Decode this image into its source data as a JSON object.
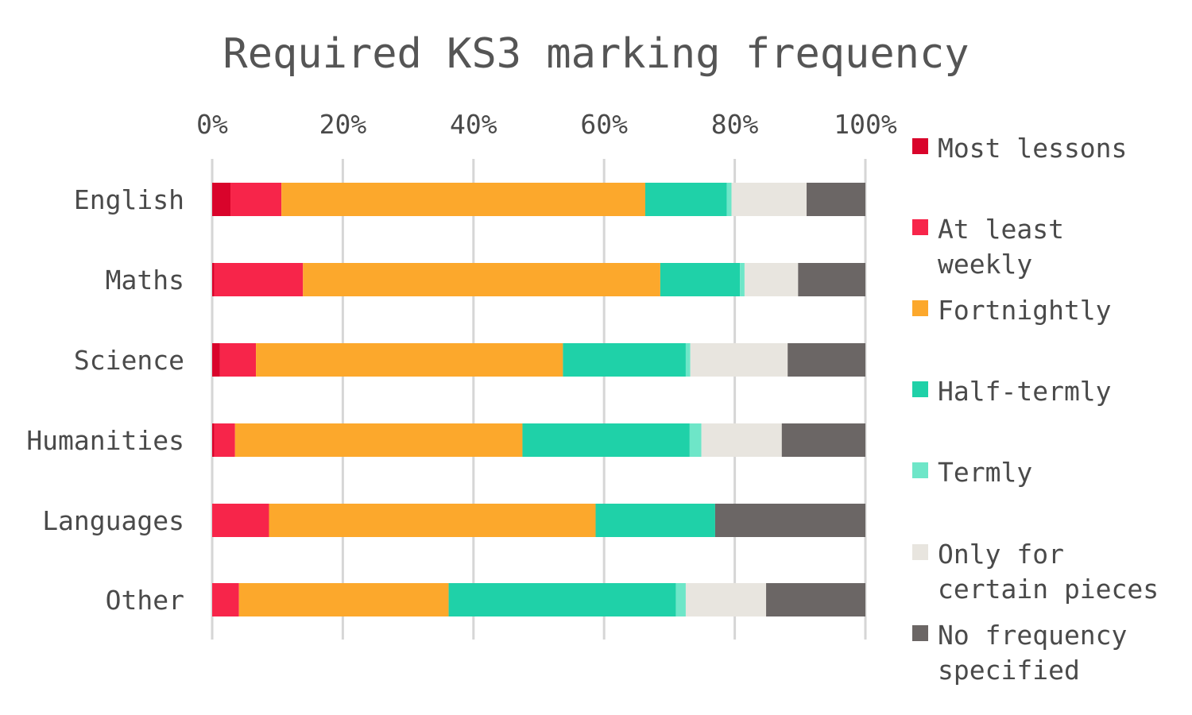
{
  "chart_data": {
    "type": "bar",
    "orientation": "horizontal",
    "stacked": true,
    "title": "Required KS3 marking frequency",
    "categories": [
      "English",
      "Maths",
      "Science",
      "Humanities",
      "Languages",
      "Other"
    ],
    "xlim": [
      0,
      100
    ],
    "xticks": [
      "0%",
      "20%",
      "40%",
      "60%",
      "80%",
      "100%"
    ],
    "grid": true,
    "legend_position": "right",
    "series": [
      {
        "name": "Most lessons",
        "legend_label": "Most lessons",
        "color": "#d9042b",
        "values": [
          2.8,
          0.3,
          1.2,
          0.3,
          0,
          0
        ]
      },
      {
        "name": "At least weekly",
        "legend_label": "At least\nweekly",
        "color": "#f7254a",
        "values": [
          7.8,
          13.6,
          5.5,
          3.2,
          8.7,
          4.1
        ]
      },
      {
        "name": "Fortnightly",
        "legend_label": "Fortnightly",
        "color": "#fca82c",
        "values": [
          55.7,
          54.7,
          47.0,
          44.0,
          50.0,
          32.1
        ]
      },
      {
        "name": "Half-termly",
        "legend_label": "Half-termly",
        "color": "#1fd1a8",
        "values": [
          12.5,
          12.2,
          18.8,
          25.6,
          18.3,
          34.8
        ]
      },
      {
        "name": "Termly",
        "legend_label": "Termly",
        "color": "#6ee6c8",
        "values": [
          0.7,
          0.7,
          0.7,
          1.8,
          0,
          1.5
        ]
      },
      {
        "name": "Only for certain pieces",
        "legend_label": "Only for\ncertain pieces",
        "color": "#e8e5df",
        "values": [
          11.5,
          8.2,
          14.9,
          12.3,
          0,
          12.3
        ]
      },
      {
        "name": "No frequency specified",
        "legend_label": "No frequency\nspecified",
        "color": "#6b6665",
        "values": [
          9.0,
          10.3,
          11.9,
          12.8,
          23.0,
          15.2
        ]
      }
    ]
  }
}
